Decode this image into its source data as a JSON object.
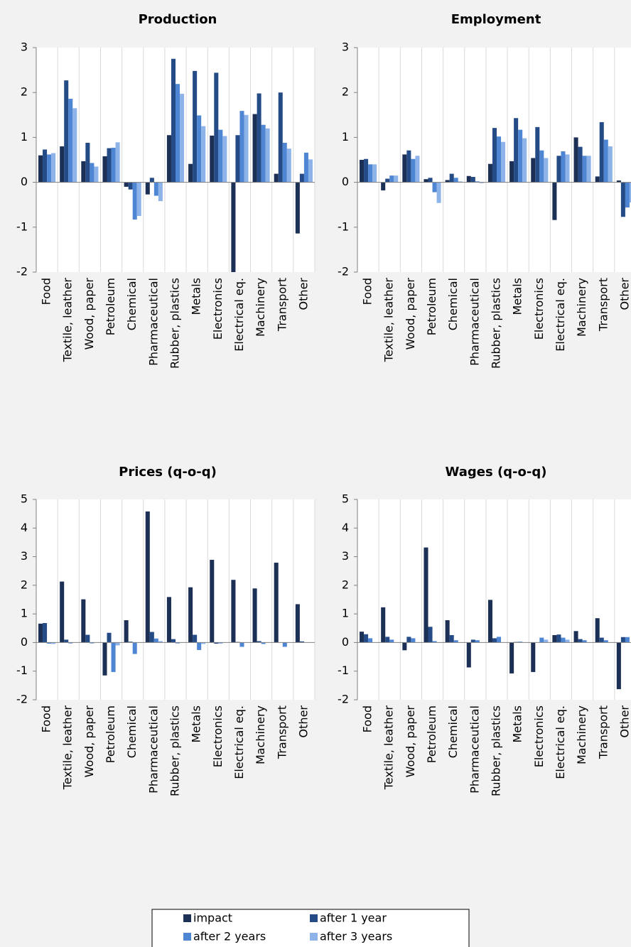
{
  "chart_data": [
    {
      "type": "bar",
      "title": "Production",
      "categories": [
        "Food",
        "Textile, leather",
        "Wood, paper",
        "Petroleum",
        "Chemical",
        "Pharmaceutical",
        "Rubber, plastics",
        "Metals",
        "Electronics",
        "Electrical eq.",
        "Machinery",
        "Transport",
        "Other"
      ],
      "series": [
        {
          "name": "impact",
          "color": "#1c2f55",
          "values": [
            0.6,
            0.8,
            0.47,
            0.58,
            -0.1,
            -0.27,
            1.05,
            0.41,
            1.04,
            -2.0,
            1.52,
            0.19,
            -1.14
          ]
        },
        {
          "name": "after 1 year",
          "color": "#244b86",
          "values": [
            0.73,
            2.27,
            0.88,
            0.76,
            -0.16,
            0.1,
            2.75,
            2.48,
            2.44,
            1.05,
            1.98,
            2.0,
            0.19
          ]
        },
        {
          "name": "after 2 years",
          "color": "#4f86d4",
          "values": [
            0.62,
            1.86,
            0.43,
            0.77,
            -0.83,
            -0.3,
            2.19,
            1.49,
            1.17,
            1.59,
            1.28,
            0.88,
            0.66
          ]
        },
        {
          "name": "after 3 years",
          "color": "#8db3e8",
          "values": [
            0.65,
            1.65,
            0.35,
            0.89,
            -0.75,
            -0.42,
            1.97,
            1.25,
            1.03,
            1.5,
            1.2,
            0.75,
            0.51
          ]
        }
      ],
      "ylim": [
        -2,
        3
      ],
      "yticks": [
        -2,
        -1,
        0,
        1,
        2,
        3
      ],
      "grid": true
    },
    {
      "type": "bar",
      "title": "Employment",
      "categories": [
        "Food",
        "Textile, leather",
        "Wood, paper",
        "Petroleum",
        "Chemical",
        "Pharmaceutical",
        "Rubber, plastics",
        "Metals",
        "Electronics",
        "Electrical eq.",
        "Machinery",
        "Transport",
        "Other"
      ],
      "series": [
        {
          "name": "impact",
          "color": "#1c2f55",
          "values": [
            0.5,
            -0.18,
            0.62,
            0.07,
            0.05,
            0.14,
            0.41,
            0.47,
            0.54,
            -0.84,
            1.0,
            0.13,
            0.04
          ]
        },
        {
          "name": "after 1 year",
          "color": "#244b86",
          "values": [
            0.52,
            0.08,
            0.71,
            0.1,
            0.19,
            0.12,
            1.21,
            1.43,
            1.23,
            0.59,
            0.79,
            1.34,
            -0.77
          ]
        },
        {
          "name": "after 2 years",
          "color": "#4f86d4",
          "values": [
            0.4,
            0.15,
            0.52,
            -0.22,
            0.1,
            0.02,
            1.02,
            1.17,
            0.71,
            0.69,
            0.59,
            0.95,
            -0.56
          ]
        },
        {
          "name": "after 3 years",
          "color": "#8db3e8",
          "values": [
            0.4,
            0.15,
            0.59,
            -0.46,
            0.02,
            -0.02,
            0.9,
            0.98,
            0.54,
            0.62,
            0.59,
            0.8,
            -0.45
          ]
        }
      ],
      "ylim": [
        -2,
        3
      ],
      "yticks": [
        -2,
        -1,
        0,
        1,
        2,
        3
      ],
      "grid": true
    },
    {
      "type": "bar",
      "title": "Prices (q-o-q)",
      "categories": [
        "Food",
        "Textile, leather",
        "Wood, paper",
        "Petroleum",
        "Chemical",
        "Pharmaceutical",
        "Rubber, plastics",
        "Metals",
        "Electronics",
        "Electrical eq.",
        "Machinery",
        "Transport",
        "Other"
      ],
      "series": [
        {
          "name": "impact",
          "color": "#1c2f55",
          "values": [
            0.66,
            2.13,
            1.51,
            -1.15,
            0.78,
            4.58,
            1.59,
            1.93,
            2.89,
            2.19,
            1.89,
            2.79,
            1.34
          ]
        },
        {
          "name": "after 1 year",
          "color": "#244b86",
          "values": [
            0.68,
            0.1,
            0.27,
            0.34,
            0.03,
            0.37,
            0.12,
            0.27,
            -0.04,
            0.02,
            0.05,
            0.01,
            0.04
          ]
        },
        {
          "name": "after 2 years",
          "color": "#4f86d4",
          "values": [
            -0.04,
            -0.03,
            -0.03,
            -1.03,
            -0.4,
            0.14,
            -0.03,
            -0.26,
            -0.03,
            -0.15,
            -0.05,
            -0.15,
            0.01
          ]
        },
        {
          "name": "after 3 years",
          "color": "#8db3e8",
          "values": [
            -0.05,
            0,
            0,
            -0.1,
            0,
            0.05,
            0,
            -0.05,
            0,
            0,
            0,
            0,
            0
          ]
        }
      ],
      "ylim": [
        -2,
        5
      ],
      "yticks": [
        -2,
        -1,
        0,
        1,
        2,
        3,
        4,
        5
      ],
      "grid": true
    },
    {
      "type": "bar",
      "title": "Wages (q-o-q)",
      "categories": [
        "Food",
        "Textile, leather",
        "Wood, paper",
        "Petroleum",
        "Chemical",
        "Pharmaceutical",
        "Rubber, plastics",
        "Metals",
        "Electronics",
        "Electrical eq.",
        "Machinery",
        "Transport",
        "Other"
      ],
      "series": [
        {
          "name": "impact",
          "color": "#1c2f55",
          "values": [
            0.38,
            1.23,
            -0.27,
            3.32,
            0.78,
            -0.87,
            1.49,
            -1.08,
            -1.03,
            0.26,
            0.4,
            0.85,
            -1.63
          ]
        },
        {
          "name": "after 1 year",
          "color": "#244b86",
          "values": [
            0.29,
            0.2,
            0.2,
            0.55,
            0.26,
            0.1,
            0.15,
            0.02,
            0,
            0.28,
            0.12,
            0.17,
            0.19
          ]
        },
        {
          "name": "after 2 years",
          "color": "#4f86d4",
          "values": [
            0.15,
            0.1,
            0.15,
            0.05,
            0.08,
            0.08,
            0.2,
            0.03,
            0.17,
            0.17,
            0.08,
            0.08,
            0.19
          ]
        },
        {
          "name": "after 3 years",
          "color": "#8db3e8",
          "values": [
            0,
            0,
            0,
            0,
            0,
            0,
            0,
            0,
            0.1,
            0.1,
            0,
            0,
            0
          ]
        }
      ],
      "ylim": [
        -2,
        5
      ],
      "yticks": [
        -2,
        -1,
        0,
        1,
        2,
        3,
        4,
        5
      ],
      "grid": true
    }
  ]
}
